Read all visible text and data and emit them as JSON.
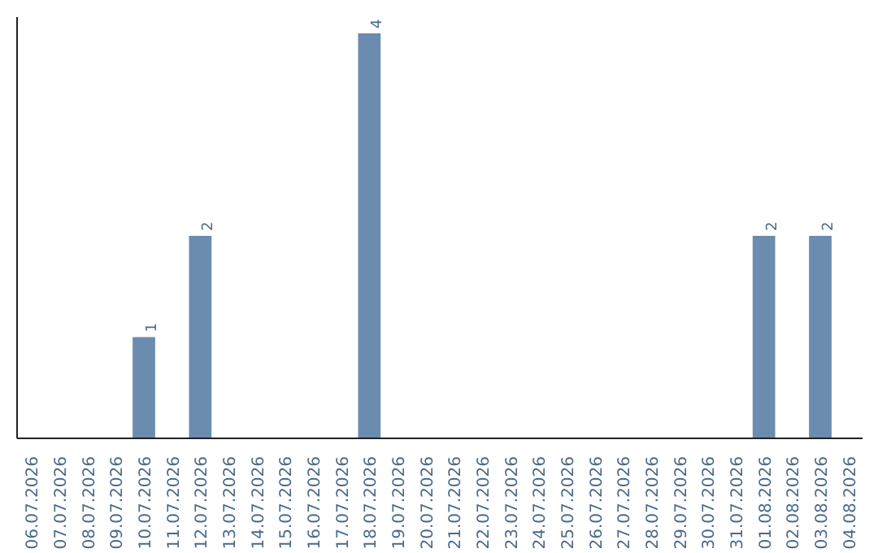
{
  "chart_data": {
    "type": "bar",
    "categories": [
      "06.07.2026",
      "07.07.2026",
      "08.07.2026",
      "09.07.2026",
      "10.07.2026",
      "11.07.2026",
      "12.07.2026",
      "13.07.2026",
      "14.07.2026",
      "15.07.2026",
      "16.07.2026",
      "17.07.2026",
      "18.07.2026",
      "19.07.2026",
      "20.07.2026",
      "21.07.2026",
      "22.07.2026",
      "23.07.2026",
      "24.07.2026",
      "25.07.2026",
      "26.07.2026",
      "27.07.2026",
      "28.07.2026",
      "29.07.2026",
      "30.07.2026",
      "31.07.2026",
      "01.08.2026",
      "02.08.2026",
      "03.08.2026",
      "04.08.2026"
    ],
    "values": [
      0,
      0,
      0,
      0,
      1,
      0,
      2,
      0,
      0,
      0,
      0,
      0,
      4,
      0,
      0,
      0,
      0,
      0,
      0,
      0,
      0,
      0,
      0,
      0,
      0,
      0,
      2,
      0,
      2,
      0
    ],
    "value_labels": [
      null,
      null,
      null,
      null,
      "1",
      null,
      "2",
      null,
      null,
      null,
      null,
      null,
      "4",
      null,
      null,
      null,
      null,
      null,
      null,
      null,
      null,
      null,
      null,
      null,
      null,
      null,
      "2",
      null,
      "2",
      null
    ],
    "color": "#6b8cae"
  }
}
